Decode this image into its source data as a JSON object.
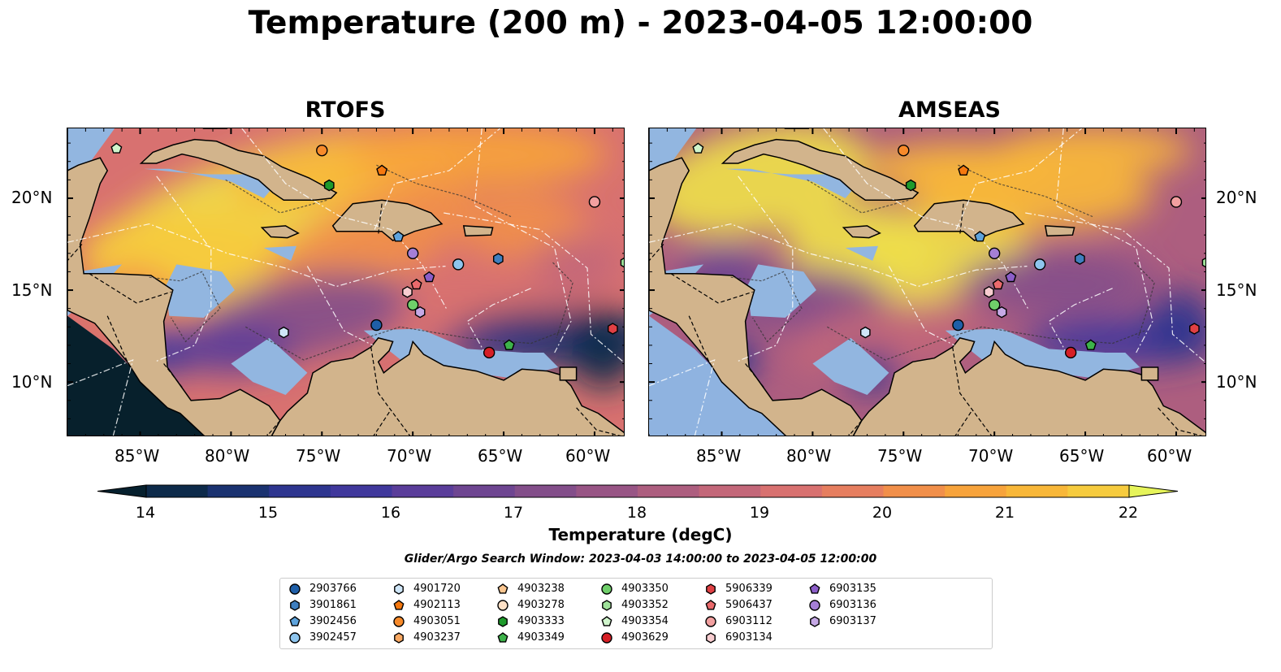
{
  "title": "Temperature (200 m) - 2023-04-05 12:00:00",
  "panels": [
    {
      "title": "RTOFS"
    },
    {
      "title": "AMSEAS"
    }
  ],
  "axes": {
    "x_ticks": [
      "85°W",
      "80°W",
      "75°W",
      "70°W",
      "65°W",
      "60°W"
    ],
    "y_ticks": [
      "20°N",
      "15°N",
      "10°N"
    ],
    "lon_range": [
      -89,
      -58.3
    ],
    "lat_range": [
      7,
      23.8
    ]
  },
  "colorbar": {
    "label": "Temperature (degC)",
    "ticks": [
      "14",
      "15",
      "16",
      "17",
      "18",
      "19",
      "20",
      "21",
      "22"
    ],
    "range": [
      14,
      22
    ],
    "extend": "both",
    "colormap": "thermal",
    "colors": [
      "#06202e",
      "#0d2a4a",
      "#1a3270",
      "#2e358f",
      "#40389c",
      "#5a3d9a",
      "#6e4591",
      "#834e8a",
      "#985585",
      "#ad5e7f",
      "#c36779",
      "#d87170",
      "#e67e5f",
      "#f18f4a",
      "#f7a33b",
      "#f8b739",
      "#f6cb3e",
      "#efe04a",
      "#e6f45a"
    ]
  },
  "search_window": "Glider/Argo Search Window: 2023-04-03 14:00:00 to 2023-04-05 12:00:00",
  "legend": [
    {
      "id": "2903766",
      "marker": "circle",
      "color": "#1f5fa8"
    },
    {
      "id": "3901861",
      "marker": "hexagon",
      "color": "#3f7fbf"
    },
    {
      "id": "3902456",
      "marker": "pentagon",
      "color": "#5ea3dc"
    },
    {
      "id": "3902457",
      "marker": "circle",
      "color": "#8ec5ee"
    },
    {
      "id": "4901720",
      "marker": "hexagon",
      "color": "#cfe6f8"
    },
    {
      "id": "4902113",
      "marker": "pentagon",
      "color": "#f5780f"
    },
    {
      "id": "4903051",
      "marker": "circle",
      "color": "#f78a2a"
    },
    {
      "id": "4903237",
      "marker": "hexagon",
      "color": "#f9a862"
    },
    {
      "id": "4903238",
      "marker": "pentagon",
      "color": "#fbc690"
    },
    {
      "id": "4903278",
      "marker": "circle",
      "color": "#fde0c6"
    },
    {
      "id": "4903333",
      "marker": "hexagon",
      "color": "#1e9a2c"
    },
    {
      "id": "4903349",
      "marker": "pentagon",
      "color": "#3db24a"
    },
    {
      "id": "4903350",
      "marker": "circle",
      "color": "#6fcf6a"
    },
    {
      "id": "4903352",
      "marker": "hexagon",
      "color": "#9fe29a"
    },
    {
      "id": "4903354",
      "marker": "pentagon",
      "color": "#d0f5cc"
    },
    {
      "id": "4903629",
      "marker": "circle",
      "color": "#d61f26"
    },
    {
      "id": "5906339",
      "marker": "hexagon",
      "color": "#e04044"
    },
    {
      "id": "5906437",
      "marker": "pentagon",
      "color": "#ea6a6c"
    },
    {
      "id": "6903112",
      "marker": "circle",
      "color": "#f2a0a0"
    },
    {
      "id": "6903134",
      "marker": "hexagon",
      "color": "#f8cdd0"
    },
    {
      "id": "6903135",
      "marker": "pentagon",
      "color": "#8c5ec9"
    },
    {
      "id": "6903136",
      "marker": "circle",
      "color": "#a57fd6"
    },
    {
      "id": "6903137",
      "marker": "hexagon",
      "color": "#c6a9e6"
    }
  ],
  "floats": {
    "rtofs": [
      {
        "id": "4903354",
        "lon": -86.3,
        "lat": 22.7
      },
      {
        "id": "4903051",
        "lon": -75.0,
        "lat": 22.6
      },
      {
        "id": "4902113",
        "lon": -71.7,
        "lat": 21.5
      },
      {
        "id": "4903333",
        "lon": -74.6,
        "lat": 20.7
      },
      {
        "id": "6903112",
        "lon": -60.0,
        "lat": 19.8
      },
      {
        "id": "3902456",
        "lon": -70.8,
        "lat": 17.9
      },
      {
        "id": "6903136",
        "lon": -70.0,
        "lat": 17.0
      },
      {
        "id": "3902457",
        "lon": -67.5,
        "lat": 16.4
      },
      {
        "id": "3901861",
        "lon": -65.3,
        "lat": 16.7
      },
      {
        "id": "4903352",
        "lon": -58.3,
        "lat": 16.5
      },
      {
        "id": "6903135",
        "lon": -69.1,
        "lat": 15.7
      },
      {
        "id": "5906437",
        "lon": -69.8,
        "lat": 15.3
      },
      {
        "id": "6903134",
        "lon": -70.3,
        "lat": 14.9
      },
      {
        "id": "4903350",
        "lon": -70.0,
        "lat": 14.2
      },
      {
        "id": "6903137",
        "lon": -69.6,
        "lat": 13.8
      },
      {
        "id": "2903766",
        "lon": -72.0,
        "lat": 13.1
      },
      {
        "id": "4901720",
        "lon": -77.1,
        "lat": 12.7
      },
      {
        "id": "5906339",
        "lon": -59.0,
        "lat": 12.9
      },
      {
        "id": "4903349",
        "lon": -64.7,
        "lat": 12.0
      },
      {
        "id": "4903629",
        "lon": -65.8,
        "lat": 11.6
      }
    ],
    "amseas": [
      {
        "id": "4903354",
        "lon": -86.3,
        "lat": 22.7
      },
      {
        "id": "4903051",
        "lon": -75.0,
        "lat": 22.6
      },
      {
        "id": "4902113",
        "lon": -71.7,
        "lat": 21.5
      },
      {
        "id": "4903333",
        "lon": -74.6,
        "lat": 20.7
      },
      {
        "id": "6903112",
        "lon": -60.0,
        "lat": 19.8
      },
      {
        "id": "3902456",
        "lon": -70.8,
        "lat": 17.9
      },
      {
        "id": "6903136",
        "lon": -70.0,
        "lat": 17.0
      },
      {
        "id": "3902457",
        "lon": -67.5,
        "lat": 16.4
      },
      {
        "id": "3901861",
        "lon": -65.3,
        "lat": 16.7
      },
      {
        "id": "4903352",
        "lon": -58.3,
        "lat": 16.5
      },
      {
        "id": "6903135",
        "lon": -69.1,
        "lat": 15.7
      },
      {
        "id": "5906437",
        "lon": -69.8,
        "lat": 15.3
      },
      {
        "id": "6903134",
        "lon": -70.3,
        "lat": 14.9
      },
      {
        "id": "4903350",
        "lon": -70.0,
        "lat": 14.2
      },
      {
        "id": "6903137",
        "lon": -69.6,
        "lat": 13.8
      },
      {
        "id": "2903766",
        "lon": -72.0,
        "lat": 13.1
      },
      {
        "id": "4901720",
        "lon": -77.1,
        "lat": 12.7
      },
      {
        "id": "5906339",
        "lon": -59.0,
        "lat": 12.9
      },
      {
        "id": "4903349",
        "lon": -64.7,
        "lat": 12.0
      },
      {
        "id": "4903629",
        "lon": -65.8,
        "lat": 11.6
      }
    ]
  },
  "land_color": "#d2b48c",
  "shelf_color": "#92b6e0"
}
